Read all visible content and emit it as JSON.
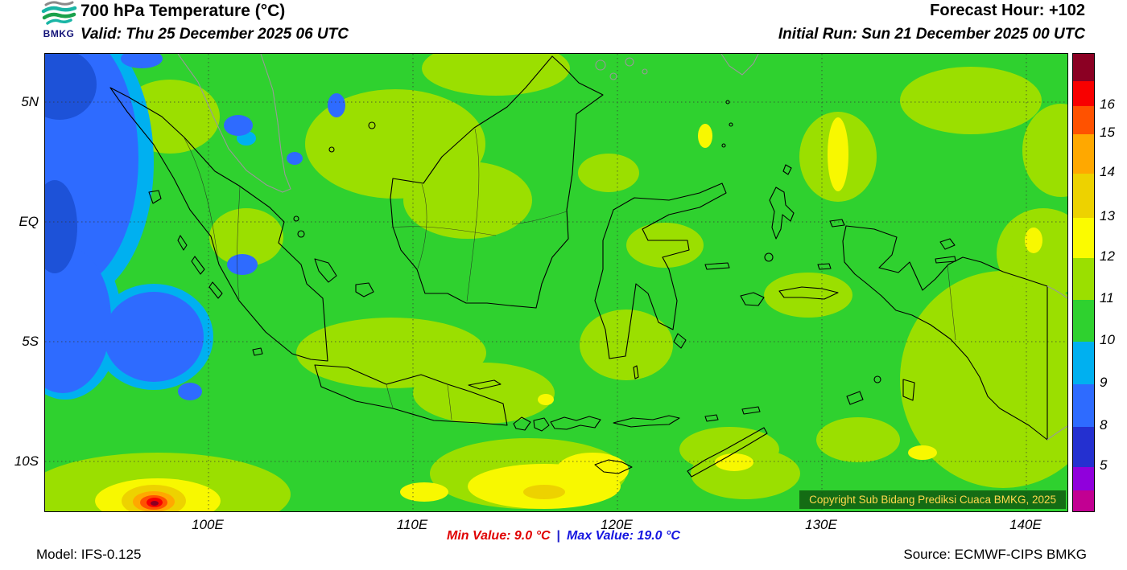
{
  "header": {
    "logo_text": "BMKG",
    "title": "700 hPa Temperature (°C)",
    "valid": "Valid: Thu 25 December 2025 06 UTC",
    "forecast_hour": "Forecast Hour: +102",
    "initial_run": "Initial Run: Sun 21 December 2025 00 UTC"
  },
  "map": {
    "lat_ticks": [
      "5N",
      "EQ",
      "5S",
      "10S"
    ],
    "lon_ticks": [
      "100E",
      "110E",
      "120E",
      "130E",
      "140E"
    ],
    "copyright": "Copyright Sub Bidang Prediksi Cuaca BMKG, 2025"
  },
  "colorbar": {
    "cells": [
      {
        "color": "#8B0023",
        "h": 0.06
      },
      {
        "color": "#F80000",
        "h": 0.054,
        "label": "16"
      },
      {
        "color": "#FF5200",
        "h": 0.062,
        "label": "15"
      },
      {
        "color": "#FFA800",
        "h": 0.086,
        "label": "14"
      },
      {
        "color": "#EDD200",
        "h": 0.097,
        "label": "13"
      },
      {
        "color": "#FBFB00",
        "h": 0.087,
        "label": "12"
      },
      {
        "color": "#9BDF00",
        "h": 0.092,
        "label": "11"
      },
      {
        "color": "#2FD12F",
        "h": 0.092,
        "label": "10"
      },
      {
        "color": "#00B0F0",
        "h": 0.093,
        "label": "9"
      },
      {
        "color": "#2E6BFF",
        "h": 0.093,
        "label": "8"
      },
      {
        "color": "#2430D0",
        "h": 0.088,
        "label": "5"
      },
      {
        "color": "#9000DC",
        "h": 0.05
      },
      {
        "color": "#C20092",
        "h": 0.046
      }
    ]
  },
  "footer": {
    "model": "Model: IFS-0.125",
    "min_value": "Min Value: 9.0 °C",
    "separator": "|",
    "max_value": "Max Value: 19.0 °C",
    "source": "Source: ECMWF-CIPS BMKG"
  }
}
